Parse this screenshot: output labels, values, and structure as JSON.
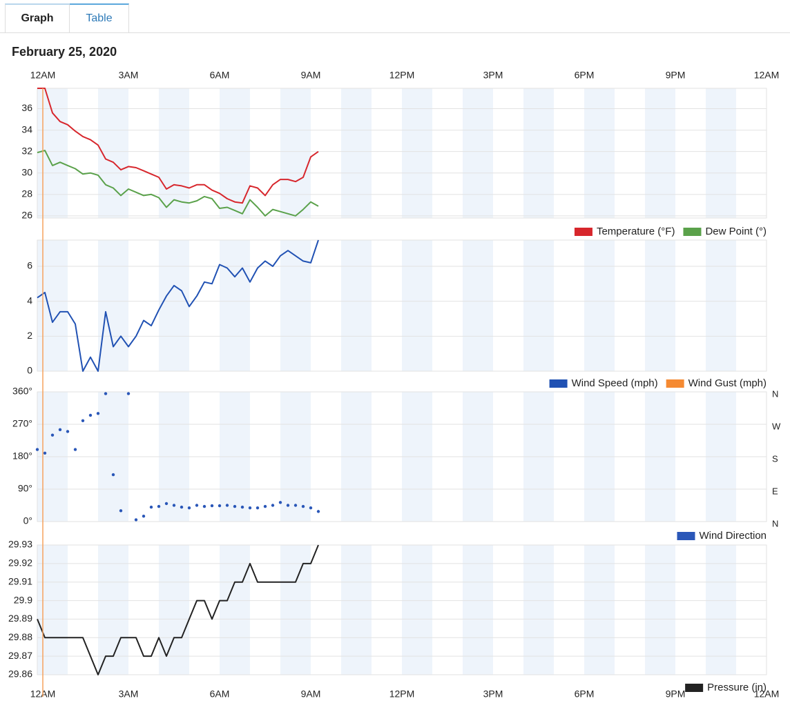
{
  "tabs": [
    "Graph",
    "Table"
  ],
  "title": "February 25, 2020",
  "chart_data": [
    {
      "type": "line",
      "xlim": [
        0,
        24
      ],
      "xticks": [
        {
          "value": 0,
          "label": "12AM"
        },
        {
          "value": 3,
          "label": "3AM"
        },
        {
          "value": 6,
          "label": "6AM"
        },
        {
          "value": 9,
          "label": "9AM"
        },
        {
          "value": 12,
          "label": "12PM"
        },
        {
          "value": 15,
          "label": "3PM"
        },
        {
          "value": 18,
          "label": "6PM"
        },
        {
          "value": 21,
          "label": "9PM"
        },
        {
          "value": 24,
          "label": "12AM"
        }
      ],
      "x": [
        0,
        0.25,
        0.5,
        0.75,
        1,
        1.25,
        1.5,
        1.75,
        2,
        2.25,
        2.5,
        2.75,
        3,
        3.25,
        3.5,
        3.75,
        4,
        4.25,
        4.5,
        4.75,
        5,
        5.25,
        5.5,
        5.75,
        6,
        6.25,
        6.5,
        6.75,
        7,
        7.25,
        7.5,
        7.75,
        8,
        8.25,
        8.5,
        8.75,
        9,
        9.25
      ],
      "ylim": [
        25.8,
        37.9
      ],
      "yticks": [
        26,
        28,
        30,
        32,
        34,
        36
      ],
      "grid": true,
      "series": [
        {
          "name": "Temperature (°F)",
          "color": "#d7262c",
          "values": [
            37.9,
            37.9,
            35.6,
            34.8,
            34.5,
            33.9,
            33.4,
            33.1,
            32.6,
            31.3,
            31.0,
            30.3,
            30.6,
            30.5,
            30.2,
            29.9,
            29.6,
            28.5,
            28.9,
            28.8,
            28.6,
            28.9,
            28.9,
            28.4,
            28.1,
            27.6,
            27.3,
            27.2,
            28.8,
            28.6,
            27.9,
            28.9,
            29.4,
            29.4,
            29.2,
            29.6,
            31.5,
            32.0
          ]
        },
        {
          "name": "Dew Point (°)",
          "color": "#5aa14a",
          "values": [
            31.9,
            32.1,
            30.7,
            31.0,
            30.7,
            30.4,
            29.9,
            30.0,
            29.8,
            28.9,
            28.6,
            27.9,
            28.5,
            28.2,
            27.9,
            28.0,
            27.7,
            26.8,
            27.5,
            27.3,
            27.2,
            27.4,
            27.8,
            27.6,
            26.7,
            26.8,
            26.5,
            26.2,
            27.5,
            26.8,
            26.0,
            26.6,
            26.4,
            26.2,
            26.0,
            26.6,
            27.3,
            26.9
          ]
        }
      ]
    },
    {
      "type": "line",
      "x": [
        0,
        0.25,
        0.5,
        0.75,
        1,
        1.25,
        1.5,
        1.75,
        2,
        2.25,
        2.5,
        2.75,
        3,
        3.25,
        3.5,
        3.75,
        4,
        4.25,
        4.5,
        4.75,
        5,
        5.25,
        5.5,
        5.75,
        6,
        6.25,
        6.5,
        6.75,
        7,
        7.25,
        7.5,
        7.75,
        8,
        8.25,
        8.5,
        8.75,
        9,
        9.25
      ],
      "ylim": [
        0,
        7.5
      ],
      "yticks": [
        0,
        2,
        4,
        6
      ],
      "grid": true,
      "series": [
        {
          "name": "Wind Speed (mph)",
          "color": "#2051b3",
          "values": [
            4.2,
            4.5,
            2.8,
            3.4,
            3.4,
            2.7,
            0,
            0.8,
            0,
            3.4,
            1.4,
            2.0,
            1.4,
            2.0,
            2.9,
            2.6,
            3.5,
            4.3,
            4.9,
            4.6,
            3.7,
            4.3,
            5.1,
            5.0,
            6.1,
            5.9,
            5.4,
            5.9,
            5.1,
            5.9,
            6.3,
            6.0,
            6.6,
            6.9,
            6.6,
            6.3,
            6.2,
            7.5
          ]
        },
        {
          "name": "Wind Gust (mph)",
          "color": "#f58a32",
          "values": [
            null,
            null,
            null,
            null,
            null,
            null,
            null,
            null,
            null,
            null,
            null,
            null,
            null,
            null,
            null,
            null,
            null,
            null,
            null,
            null,
            null,
            null,
            null,
            null,
            null,
            null,
            null,
            null,
            null,
            null,
            null,
            null,
            null,
            null,
            null,
            null,
            null,
            null
          ]
        }
      ]
    },
    {
      "type": "scatter",
      "x": [
        0,
        0.25,
        0.5,
        0.75,
        1,
        1.25,
        1.5,
        1.75,
        2,
        2.25,
        2.5,
        2.75,
        3,
        3.25,
        3.5,
        3.75,
        4,
        4.25,
        4.5,
        4.75,
        5,
        5.25,
        5.5,
        5.75,
        6,
        6.25,
        6.5,
        6.75,
        7,
        7.25,
        7.5,
        7.75,
        8,
        8.25,
        8.5,
        8.75,
        9,
        9.25
      ],
      "ylim": [
        0,
        360
      ],
      "yticks": [
        {
          "value": 0,
          "label": "0°"
        },
        {
          "value": 90,
          "label": "90°"
        },
        {
          "value": 180,
          "label": "180°"
        },
        {
          "value": 270,
          "label": "270°"
        },
        {
          "value": 360,
          "label": "360°"
        }
      ],
      "y2lim": [
        0,
        360
      ],
      "y2ticks": [
        {
          "value": 0,
          "label": "N"
        },
        {
          "value": 90,
          "label": "E"
        },
        {
          "value": 180,
          "label": "S"
        },
        {
          "value": 270,
          "label": "W"
        },
        {
          "value": 360,
          "label": "N"
        }
      ],
      "grid": true,
      "series": [
        {
          "name": "Wind Direction",
          "color": "#2a57b8",
          "values": [
            200,
            190,
            240,
            255,
            250,
            200,
            280,
            295,
            300,
            355,
            130,
            30,
            355,
            5,
            15,
            40,
            42,
            50,
            45,
            40,
            38,
            45,
            42,
            44,
            44,
            45,
            42,
            40,
            38,
            38,
            42,
            45,
            53,
            45,
            45,
            42,
            38,
            28
          ]
        }
      ]
    },
    {
      "type": "line",
      "x": [
        0,
        0.25,
        0.5,
        0.75,
        1,
        1.25,
        1.5,
        1.75,
        2,
        2.25,
        2.5,
        2.75,
        3,
        3.25,
        3.5,
        3.75,
        4,
        4.25,
        4.5,
        4.75,
        5,
        5.25,
        5.5,
        5.75,
        6,
        6.25,
        6.5,
        6.75,
        7,
        7.25,
        7.5,
        7.75,
        8,
        8.25,
        8.5,
        8.75,
        9,
        9.25
      ],
      "ylim": [
        29.86,
        29.93
      ],
      "yticks": [
        29.86,
        29.87,
        29.88,
        29.89,
        29.9,
        29.91,
        29.92,
        29.93
      ],
      "grid": true,
      "series": [
        {
          "name": "Pressure (in)",
          "color": "#222222",
          "values": [
            29.89,
            29.88,
            29.88,
            29.88,
            29.88,
            29.88,
            29.88,
            29.87,
            29.86,
            29.87,
            29.87,
            29.88,
            29.88,
            29.88,
            29.87,
            29.87,
            29.88,
            29.87,
            29.88,
            29.88,
            29.89,
            29.9,
            29.9,
            29.89,
            29.9,
            29.9,
            29.91,
            29.91,
            29.92,
            29.91,
            29.91,
            29.91,
            29.91,
            29.91,
            29.91,
            29.92,
            29.92,
            29.93
          ]
        }
      ]
    }
  ]
}
